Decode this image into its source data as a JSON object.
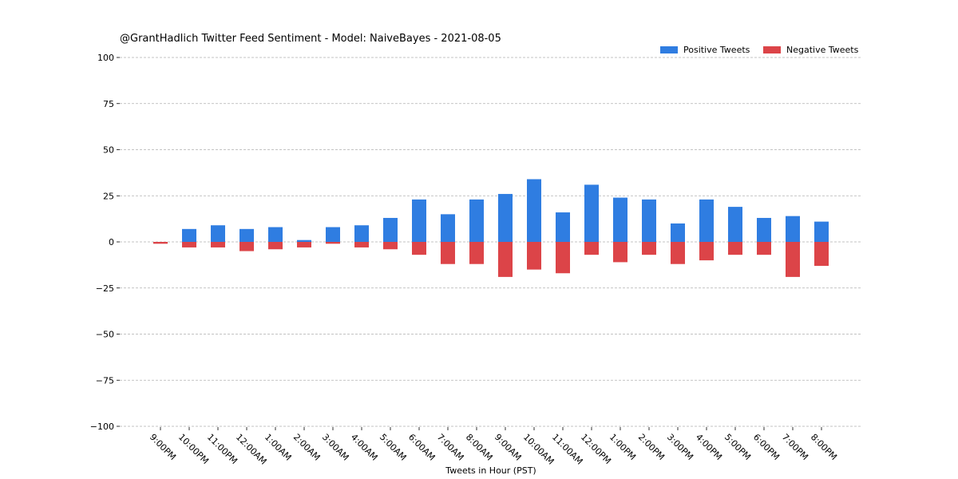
{
  "chart_data": {
    "type": "bar",
    "title": "@GrantHadlich Twitter Feed Sentiment - Model: NaiveBayes - 2021-08-05",
    "xlabel": "Tweets in Hour (PST)",
    "ylabel": "",
    "ylim": [
      -100,
      100
    ],
    "yticks": [
      100,
      75,
      50,
      25,
      0,
      -25,
      -50,
      -75,
      -100
    ],
    "ytick_labels": [
      "100",
      "75",
      "50",
      "25",
      "0",
      "−25",
      "−50",
      "−75",
      "−100"
    ],
    "grid": true,
    "legend_position": "top-right",
    "categories": [
      "9:00PM",
      "10:00PM",
      "11:00PM",
      "12:00AM",
      "1:00AM",
      "2:00AM",
      "3:00AM",
      "4:00AM",
      "5:00AM",
      "6:00AM",
      "7:00AM",
      "8:00AM",
      "9:00AM",
      "10:00AM",
      "11:00AM",
      "12:00PM",
      "1:00PM",
      "2:00PM",
      "3:00PM",
      "4:00PM",
      "5:00PM",
      "6:00PM",
      "7:00PM",
      "8:00PM"
    ],
    "series": [
      {
        "name": "Positive Tweets",
        "color": "#2f7de1",
        "values": [
          0,
          7,
          9,
          7,
          8,
          1,
          8,
          9,
          13,
          23,
          15,
          23,
          26,
          34,
          16,
          31,
          24,
          23,
          10,
          23,
          19,
          13,
          14,
          11
        ]
      },
      {
        "name": "Negative Tweets",
        "color": "#dc4448",
        "values": [
          -1,
          -3,
          -3,
          -5,
          -4,
          -3,
          -1,
          -3,
          -4,
          -7,
          -12,
          -12,
          -19,
          -15,
          -17,
          -7,
          -11,
          -7,
          -12,
          -10,
          -7,
          -7,
          -19,
          -13
        ]
      }
    ]
  }
}
